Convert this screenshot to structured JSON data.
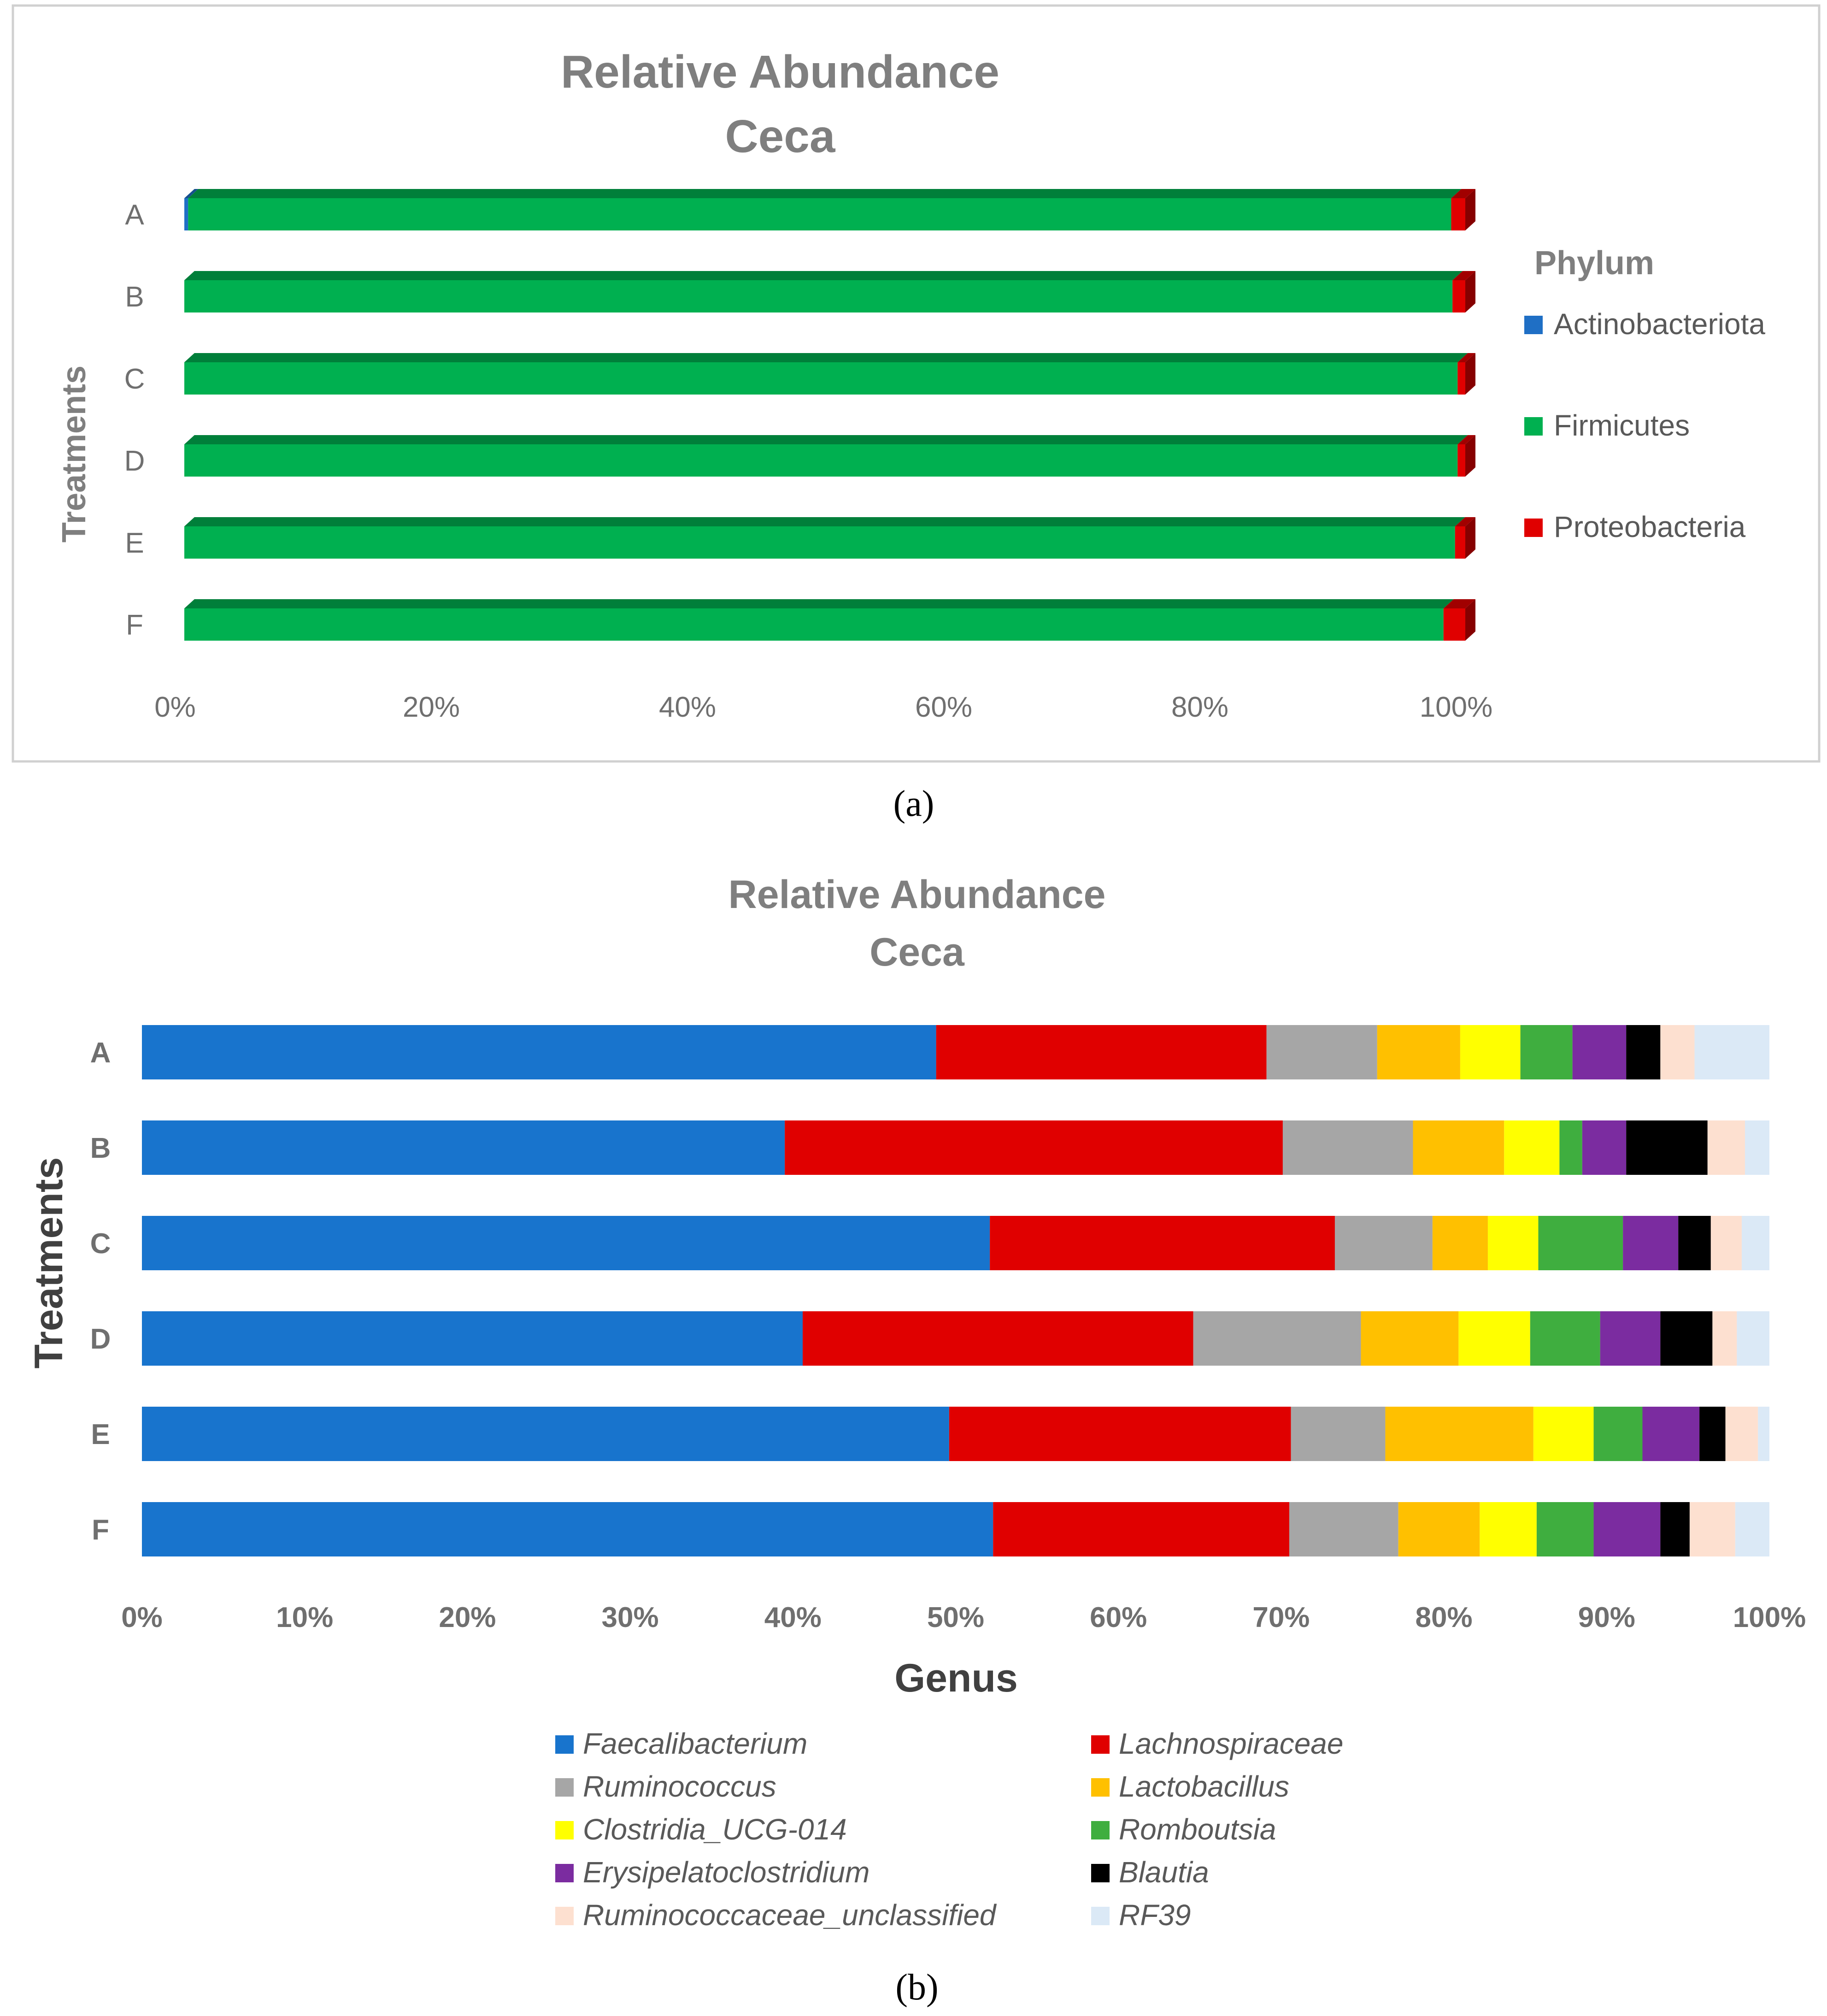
{
  "colors": {
    "actinobacteriota": "#1f6fc5",
    "firmicutes": "#00b050",
    "proteobacteria": "#e00000",
    "faecalibacterium": "#1874cd",
    "lachnospiraceae": "#e00000",
    "ruminococcus": "#a6a6a6",
    "lactobacillus": "#ffc000",
    "clostridia": "#ffff00",
    "romboutsia": "#3fae3f",
    "erysipelatoclostridium": "#7b2ca0",
    "blautia": "#000000",
    "ruminococcaceae_unclassified": "#fde0d0",
    "rf39": "#dbe9f6"
  },
  "chart_data": [
    {
      "type": "bar",
      "orientation": "horizontal",
      "stacked": true,
      "percent": true,
      "title": [
        "Relative Abundance",
        "Ceca"
      ],
      "ylabel": "Treatments",
      "xlabel": "",
      "categories": [
        "A",
        "B",
        "C",
        "D",
        "E",
        "F"
      ],
      "x_ticks": [
        "0%",
        "20%",
        "40%",
        "60%",
        "80%",
        "100%"
      ],
      "xlim": [
        0,
        100
      ],
      "legend_title": "Phylum",
      "legend_position": "right",
      "caption": "(a)",
      "series": [
        {
          "name": "Actinobacteriota",
          "color_key": "actinobacteriota",
          "values": [
            0.3,
            0.0,
            0.0,
            0.0,
            0.0,
            0.0
          ]
        },
        {
          "name": "Firmicutes",
          "color_key": "firmicutes",
          "values": [
            98.6,
            99.0,
            99.4,
            99.4,
            99.2,
            98.3
          ]
        },
        {
          "name": "Proteobacteria",
          "color_key": "proteobacteria",
          "values": [
            1.1,
            1.0,
            0.6,
            0.6,
            0.8,
            1.7
          ]
        }
      ]
    },
    {
      "type": "bar",
      "orientation": "horizontal",
      "stacked": true,
      "percent": true,
      "title": [
        "Relative Abundance",
        "Ceca"
      ],
      "ylabel": "Treatments",
      "xlabel": "Genus",
      "categories": [
        "A",
        "B",
        "C",
        "D",
        "E",
        "F"
      ],
      "x_ticks": [
        "0%",
        "10%",
        "20%",
        "30%",
        "40%",
        "50%",
        "60%",
        "70%",
        "80%",
        "90%",
        "100%"
      ],
      "xlim": [
        0,
        100
      ],
      "legend_position": "bottom",
      "caption": "(b)",
      "series": [
        {
          "name": "Faecalibacterium",
          "color_key": "faecalibacterium",
          "values": [
            48.8,
            39.5,
            52.1,
            40.6,
            49.6,
            52.3
          ]
        },
        {
          "name": "Lachnospiraceae",
          "color_key": "lachnospiraceae",
          "values": [
            20.3,
            30.6,
            21.2,
            24.0,
            21.0,
            18.2
          ]
        },
        {
          "name": "Ruminococcus",
          "color_key": "ruminococcus",
          "values": [
            6.8,
            8.0,
            6.0,
            10.3,
            5.8,
            6.7
          ]
        },
        {
          "name": "Lactobacillus",
          "color_key": "lactobacillus",
          "values": [
            5.1,
            5.6,
            3.4,
            6.0,
            9.1,
            5.0
          ]
        },
        {
          "name": "Clostridia_UCG-014",
          "color_key": "clostridia",
          "values": [
            3.7,
            3.4,
            3.1,
            4.4,
            3.7,
            3.5
          ]
        },
        {
          "name": "Romboutsia",
          "color_key": "romboutsia",
          "values": [
            3.2,
            1.4,
            5.2,
            4.3,
            3.0,
            3.5
          ]
        },
        {
          "name": "Erysipelatoclostridium",
          "color_key": "erysipelatoclostridium",
          "values": [
            3.3,
            2.7,
            3.4,
            3.7,
            3.5,
            4.1
          ]
        },
        {
          "name": "Blautia",
          "color_key": "blautia",
          "values": [
            2.1,
            5.0,
            2.0,
            3.2,
            1.6,
            1.8
          ]
        },
        {
          "name": "Ruminococcaceae_unclassified",
          "color_key": "ruminococcaceae_unclassified",
          "values": [
            2.1,
            2.3,
            1.9,
            1.5,
            2.0,
            2.8
          ]
        },
        {
          "name": "RF39",
          "color_key": "rf39",
          "values": [
            4.6,
            1.5,
            1.7,
            2.0,
            0.7,
            2.1
          ]
        }
      ]
    }
  ]
}
